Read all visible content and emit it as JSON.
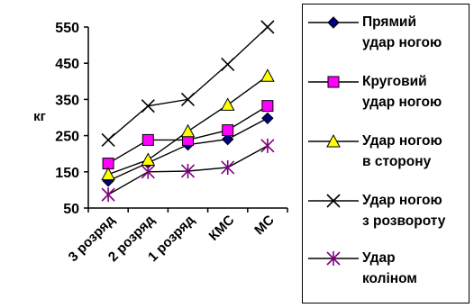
{
  "chart_data": {
    "type": "line",
    "ylabel": "кг",
    "xlabel": "",
    "ylim": [
      50,
      550
    ],
    "yticks": [
      50,
      150,
      250,
      350,
      450,
      550
    ],
    "grid": false,
    "legend_position": "right",
    "categories": [
      "3 розряд",
      "2 розряд",
      "1 розряд",
      "КМС",
      "МС"
    ],
    "series": [
      {
        "name_lines": [
          "Прямий",
          "удар ногою"
        ],
        "marker": "diamond",
        "color": "#000080",
        "values": [
          125,
          175,
          225,
          240,
          298
        ]
      },
      {
        "name_lines": [
          "Круговий",
          "удар ногою"
        ],
        "marker": "square",
        "color": "#FF00FF",
        "values": [
          173,
          238,
          238,
          265,
          332
        ]
      },
      {
        "name_lines": [
          "Удар ногою",
          "в сторону"
        ],
        "marker": "triangle",
        "color": "#FFFF00",
        "values": [
          143,
          183,
          262,
          335,
          415
        ]
      },
      {
        "name_lines": [
          "Удар ногою",
          "з розвороту"
        ],
        "marker": "x",
        "color": "#000000",
        "values": [
          238,
          332,
          350,
          447,
          550
        ]
      },
      {
        "name_lines": [
          "Удар",
          "коліном"
        ],
        "marker": "star",
        "color": "#800080",
        "values": [
          87,
          150,
          152,
          162,
          222
        ]
      }
    ]
  }
}
